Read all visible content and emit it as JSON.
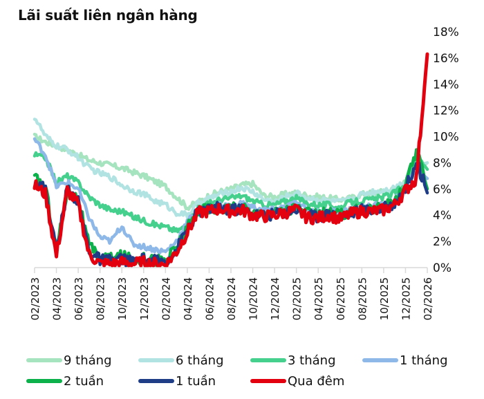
{
  "title": "Lãi suất liên ngân hàng",
  "chart_data": {
    "type": "line",
    "title": "Lãi suất liên ngân hàng",
    "xlabel": "",
    "ylabel": "",
    "ylim": [
      0,
      18
    ],
    "y_ticks": [
      "0%",
      "2%",
      "4%",
      "6%",
      "8%",
      "10%",
      "12%",
      "14%",
      "16%",
      "18%"
    ],
    "y_axis_position": "right",
    "grid": false,
    "legend_position": "bottom",
    "x_ticks": [
      "02/2023",
      "04/2023",
      "06/2023",
      "08/2023",
      "10/2023",
      "12/2023",
      "02/2024",
      "04/2024",
      "06/2024",
      "08/2024",
      "10/2024",
      "12/2024",
      "02/2025",
      "04/2025",
      "06/2025",
      "08/2025",
      "10/2025",
      "12/2025",
      "02/2026"
    ],
    "x": [
      "02/2023",
      "03/2023",
      "04/2023",
      "05/2023",
      "06/2023",
      "07/2023",
      "08/2023",
      "09/2023",
      "10/2023",
      "11/2023",
      "12/2023",
      "01/2024",
      "02/2024",
      "03/2024",
      "04/2024",
      "05/2024",
      "06/2024",
      "07/2024",
      "08/2024",
      "09/2024",
      "10/2024",
      "11/2024",
      "12/2024",
      "01/2025",
      "02/2025",
      "03/2025",
      "04/2025",
      "05/2025",
      "06/2025",
      "07/2025",
      "08/2025",
      "09/2025",
      "10/2025",
      "11/2025",
      "12/2025",
      "01/2026",
      "02/2026"
    ],
    "series": [
      {
        "name": "9 tháng",
        "color": "#a6e3bf",
        "values": [
          10.0,
          9.6,
          9.3,
          9.0,
          8.6,
          8.2,
          8.0,
          7.8,
          7.6,
          7.3,
          7.0,
          6.6,
          6.2,
          5.4,
          4.6,
          5.0,
          5.5,
          5.8,
          6.0,
          6.3,
          6.4,
          5.5,
          5.4,
          5.6,
          5.7,
          5.5,
          5.4,
          5.3,
          5.2,
          5.3,
          5.6,
          5.7,
          5.8,
          6.0,
          6.5,
          7.4,
          8.0
        ]
      },
      {
        "name": "6 tháng",
        "color": "#b2e3e3",
        "values": [
          11.5,
          10.0,
          9.3,
          9.0,
          8.4,
          7.6,
          7.2,
          6.9,
          6.3,
          5.9,
          5.6,
          5.1,
          4.8,
          4.2,
          4.0,
          4.9,
          5.3,
          5.6,
          5.8,
          6.1,
          5.8,
          5.2,
          5.0,
          5.4,
          5.7,
          5.3,
          5.2,
          5.1,
          5.0,
          5.2,
          5.6,
          5.8,
          5.9,
          6.1,
          6.6,
          7.8,
          8.0
        ]
      },
      {
        "name": "3 tháng",
        "color": "#46d08e",
        "values": [
          8.6,
          8.4,
          6.5,
          7.0,
          6.5,
          5.4,
          4.8,
          4.4,
          4.3,
          3.9,
          3.6,
          3.3,
          3.1,
          2.8,
          3.2,
          4.6,
          4.9,
          5.2,
          5.3,
          5.5,
          5.1,
          4.8,
          4.8,
          5.1,
          5.3,
          4.9,
          4.8,
          4.8,
          4.6,
          5.0,
          5.1,
          5.2,
          5.4,
          5.7,
          6.4,
          8.6,
          7.5
        ]
      },
      {
        "name": "1 tháng",
        "color": "#8db8e8",
        "values": [
          9.8,
          8.6,
          6.2,
          6.5,
          6.0,
          3.8,
          2.3,
          2.0,
          3.2,
          1.8,
          1.6,
          1.4,
          1.2,
          2.0,
          3.5,
          4.4,
          4.6,
          4.8,
          4.7,
          4.9,
          4.6,
          4.4,
          4.4,
          4.7,
          4.9,
          4.4,
          4.3,
          4.4,
          4.2,
          4.5,
          4.6,
          4.7,
          4.8,
          5.1,
          6.1,
          7.5,
          6.8
        ]
      },
      {
        "name": "2 tuần",
        "color": "#0db14b",
        "values": [
          6.8,
          6.2,
          1.2,
          6.0,
          5.2,
          1.6,
          0.8,
          0.7,
          0.9,
          0.6,
          0.7,
          0.6,
          0.6,
          1.5,
          3.0,
          4.4,
          4.5,
          4.7,
          4.5,
          4.6,
          4.2,
          4.1,
          4.2,
          4.4,
          4.6,
          4.1,
          4.0,
          4.2,
          4.0,
          4.3,
          4.5,
          4.5,
          4.6,
          5.0,
          6.2,
          8.9,
          6.0
        ]
      },
      {
        "name": "1 tuần",
        "color": "#1f3d87",
        "values": [
          6.6,
          6.0,
          1.1,
          6.1,
          5.0,
          1.3,
          0.6,
          0.5,
          0.7,
          0.4,
          0.6,
          0.5,
          0.5,
          1.4,
          2.9,
          4.3,
          4.4,
          4.6,
          4.4,
          4.5,
          4.1,
          4.0,
          4.1,
          4.3,
          4.5,
          4.0,
          3.9,
          4.1,
          3.9,
          4.2,
          4.4,
          4.4,
          4.5,
          4.9,
          6.0,
          8.2,
          5.7
        ]
      },
      {
        "name": "Qua đêm",
        "color": "#e3000f",
        "values": [
          6.3,
          5.6,
          0.9,
          5.9,
          4.8,
          1.0,
          0.3,
          0.3,
          0.4,
          0.3,
          0.4,
          0.3,
          0.2,
          1.2,
          2.7,
          4.2,
          4.3,
          4.5,
          4.3,
          4.4,
          4.0,
          3.9,
          4.0,
          4.2,
          4.4,
          3.8,
          3.8,
          4.0,
          3.7,
          4.1,
          4.3,
          4.3,
          4.4,
          4.8,
          5.9,
          6.8,
          16.3
        ]
      }
    ]
  },
  "legend": [
    {
      "label": "9 tháng",
      "color": "#a6e3bf"
    },
    {
      "label": "6 tháng",
      "color": "#b2e3e3"
    },
    {
      "label": "3 tháng",
      "color": "#46d08e"
    },
    {
      "label": "1 tháng",
      "color": "#8db8e8"
    },
    {
      "label": "2 tuần",
      "color": "#0db14b"
    },
    {
      "label": "1 tuần",
      "color": "#1f3d87"
    },
    {
      "label": "Qua đêm",
      "color": "#e3000f"
    }
  ]
}
